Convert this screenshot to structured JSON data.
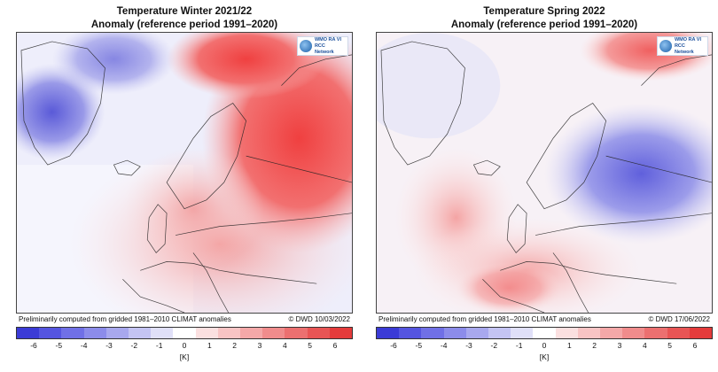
{
  "panels": [
    {
      "title_line1": "Temperature Winter 2021/22",
      "title_line2": "Anomaly (reference period 1991–2020)",
      "caption_left": "Preliminarily computed from gridded 1981–2010 CLIMAT anomalies",
      "caption_right": "© DWD 10/03/2022",
      "logo_line1": "WMO RA VI",
      "logo_line2": "RCC Network"
    },
    {
      "title_line1": "Temperature Spring 2022",
      "title_line2": "Anomaly (reference period 1991–2020)",
      "caption_left": "Preliminarily computed from gridded 1981–2010 CLIMAT anomalies",
      "caption_right": "© DWD 17/06/2022",
      "logo_line1": "WMO RA VI",
      "logo_line2": "RCC Network"
    }
  ],
  "colorbar": {
    "ticks": [
      "-6",
      "-5",
      "-4",
      "-3",
      "-2",
      "-1",
      "0",
      "1",
      "2",
      "3",
      "4",
      "5",
      "6"
    ],
    "unit": "[K]",
    "colors": [
      "#3b3bd6",
      "#5555e0",
      "#7070e6",
      "#8c8cea",
      "#a8a8ee",
      "#c4c4f3",
      "#e0e0f8",
      "#ffffff",
      "#fbe0e0",
      "#f8c4c4",
      "#f4a8a8",
      "#f08c8c",
      "#ec7070",
      "#e85555",
      "#e43b3b"
    ]
  }
}
